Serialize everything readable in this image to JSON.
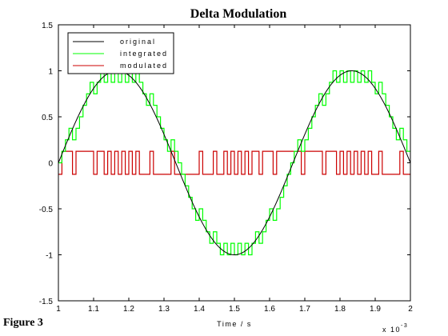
{
  "figure_label": "Figure 3",
  "chart_data": {
    "type": "line",
    "title": "Delta Modulation",
    "xlabel": "Time / s",
    "x_multiplier": "x 10",
    "x_multiplier_exp": "-3",
    "xlim": [
      1,
      2
    ],
    "ylim": [
      -1.5,
      1.5
    ],
    "xticks": [
      "1",
      "1.1",
      "1.2",
      "1.3",
      "1.4",
      "1.5",
      "1.6",
      "1.7",
      "1.8",
      "1.9",
      "2"
    ],
    "yticks": [
      "1.5",
      "1",
      "0.5",
      "0",
      "-0.5",
      "-1",
      "-1.5"
    ],
    "legend_position": "top-left",
    "series": [
      {
        "name": "original",
        "color": "#000000",
        "kind": "sine",
        "frequency_hz": 1500,
        "amplitude": 1
      },
      {
        "name": "integrated",
        "color": "#00ff00",
        "kind": "staircase",
        "step_size": 0.125,
        "sample_interval": 0.01
      },
      {
        "name": "modulated",
        "color": "#cc0000",
        "kind": "binary",
        "levels": [
          -0.125,
          0.125
        ],
        "sample_interval": 0.01
      }
    ]
  }
}
